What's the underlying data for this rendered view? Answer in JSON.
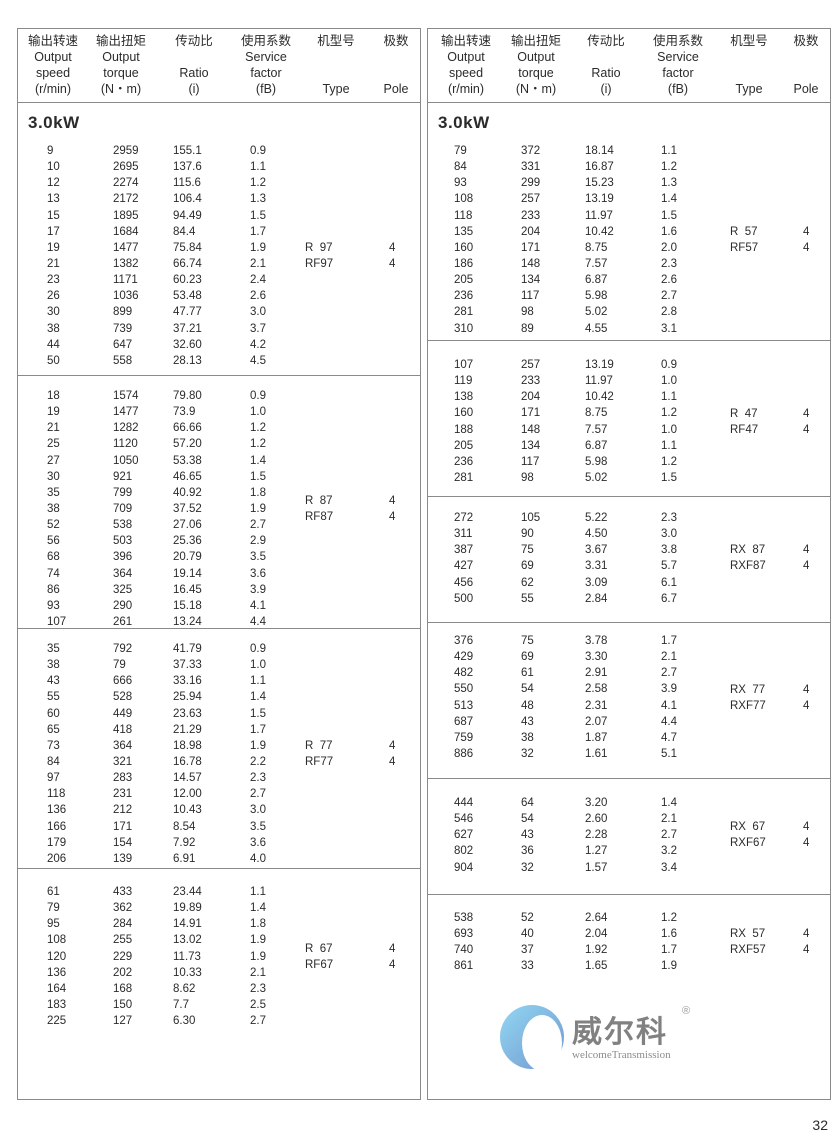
{
  "header": {
    "columns": [
      {
        "zh": "输出转速",
        "en1": "Output",
        "en2": "speed",
        "unit": "(r/min)"
      },
      {
        "zh": "输出扭矩",
        "en1": "Output",
        "en2": "torque",
        "unit": "(N・m)"
      },
      {
        "zh": "传动比",
        "en1": "",
        "en2": "Ratio",
        "unit": "(i)"
      },
      {
        "zh": "使用系数",
        "en1": "Service",
        "en2": "factor",
        "unit": "(fB)"
      },
      {
        "zh": "机型号",
        "en1": "",
        "en2": "",
        "unit": "Type"
      },
      {
        "zh": "极数",
        "en1": "",
        "en2": "",
        "unit": "Pole"
      }
    ]
  },
  "left": {
    "sections": [
      {
        "title": "3.0kW",
        "types": [
          "R  97",
          "RF97"
        ],
        "poles": [
          "4",
          "4"
        ],
        "rows": [
          [
            "9",
            "2959",
            "155.1",
            "0.9"
          ],
          [
            "10",
            "2695",
            "137.6",
            "1.1"
          ],
          [
            "12",
            "2274",
            "115.6",
            "1.2"
          ],
          [
            "13",
            "2172",
            "106.4",
            "1.3"
          ],
          [
            "15",
            "1895",
            "94.49",
            "1.5"
          ],
          [
            "17",
            "1684",
            "84.4",
            "1.7"
          ],
          [
            "19",
            "1477",
            "75.84",
            "1.9"
          ],
          [
            "21",
            "1382",
            "66.74",
            "2.1"
          ],
          [
            "23",
            "1171",
            "60.23",
            "2.4"
          ],
          [
            "26",
            "1036",
            "53.48",
            "2.6"
          ],
          [
            "30",
            "899",
            "47.77",
            "3.0"
          ],
          [
            "38",
            "739",
            "37.21",
            "3.7"
          ],
          [
            "44",
            "647",
            "32.60",
            "4.2"
          ],
          [
            "50",
            "558",
            "28.13",
            "4.5"
          ]
        ]
      },
      {
        "title": "",
        "types": [
          "R  87",
          "RF87"
        ],
        "poles": [
          "4",
          "4"
        ],
        "rows": [
          [
            "18",
            "1574",
            "79.80",
            "0.9"
          ],
          [
            "19",
            "1477",
            "73.9",
            "1.0"
          ],
          [
            "21",
            "1282",
            "66.66",
            "1.2"
          ],
          [
            "25",
            "1120",
            "57.20",
            "1.2"
          ],
          [
            "27",
            "1050",
            "53.38",
            "1.4"
          ],
          [
            "30",
            "921",
            "46.65",
            "1.5"
          ],
          [
            "35",
            "799",
            "40.92",
            "1.8"
          ],
          [
            "38",
            "709",
            "37.52",
            "1.9"
          ],
          [
            "52",
            "538",
            "27.06",
            "2.7"
          ],
          [
            "56",
            "503",
            "25.36",
            "2.9"
          ],
          [
            "68",
            "396",
            "20.79",
            "3.5"
          ],
          [
            "74",
            "364",
            "19.14",
            "3.6"
          ],
          [
            "86",
            "325",
            "16.45",
            "3.9"
          ],
          [
            "93",
            "290",
            "15.18",
            "4.1"
          ],
          [
            "107",
            "261",
            "13.24",
            "4.4"
          ]
        ]
      },
      {
        "title": "",
        "types": [
          "R  77",
          "RF77"
        ],
        "poles": [
          "4",
          "4"
        ],
        "rows": [
          [
            "35",
            "792",
            "41.79",
            "0.9"
          ],
          [
            "38",
            "79",
            "37.33",
            "1.0"
          ],
          [
            "43",
            "666",
            "33.16",
            "1.1"
          ],
          [
            "55",
            "528",
            "25.94",
            "1.4"
          ],
          [
            "60",
            "449",
            "23.63",
            "1.5"
          ],
          [
            "65",
            "418",
            "21.29",
            "1.7"
          ],
          [
            "73",
            "364",
            "18.98",
            "1.9"
          ],
          [
            "84",
            "321",
            "16.78",
            "2.2"
          ],
          [
            "97",
            "283",
            "14.57",
            "2.3"
          ],
          [
            "118",
            "231",
            "12.00",
            "2.7"
          ],
          [
            "136",
            "212",
            "10.43",
            "3.0"
          ],
          [
            "166",
            "171",
            "8.54",
            "3.5"
          ],
          [
            "179",
            "154",
            "7.92",
            "3.6"
          ],
          [
            "206",
            "139",
            "6.91",
            "4.0"
          ]
        ]
      },
      {
        "title": "",
        "types": [
          "R  67",
          "RF67"
        ],
        "poles": [
          "4",
          "4"
        ],
        "rows": [
          [
            "61",
            "433",
            "23.44",
            "1.1"
          ],
          [
            "79",
            "362",
            "19.89",
            "1.4"
          ],
          [
            "95",
            "284",
            "14.91",
            "1.8"
          ],
          [
            "108",
            "255",
            "13.02",
            "1.9"
          ],
          [
            "120",
            "229",
            "11.73",
            "1.9"
          ],
          [
            "136",
            "202",
            "10.33",
            "2.1"
          ],
          [
            "164",
            "168",
            "8.62",
            "2.3"
          ],
          [
            "183",
            "150",
            "7.7",
            "2.5"
          ],
          [
            "225",
            "127",
            "6.30",
            "2.7"
          ]
        ]
      }
    ]
  },
  "right": {
    "sections": [
      {
        "title": "3.0kW",
        "types": [
          "R  57",
          "RF57"
        ],
        "poles": [
          "4",
          "4"
        ],
        "rows": [
          [
            "79",
            "372",
            "18.14",
            "1.1"
          ],
          [
            "84",
            "331",
            "16.87",
            "1.2"
          ],
          [
            "93",
            "299",
            "15.23",
            "1.3"
          ],
          [
            "108",
            "257",
            "13.19",
            "1.4"
          ],
          [
            "118",
            "233",
            "11.97",
            "1.5"
          ],
          [
            "135",
            "204",
            "10.42",
            "1.6"
          ],
          [
            "160",
            "171",
            "8.75",
            "2.0"
          ],
          [
            "186",
            "148",
            "7.57",
            "2.3"
          ],
          [
            "205",
            "134",
            "6.87",
            "2.6"
          ],
          [
            "236",
            "117",
            "5.98",
            "2.7"
          ],
          [
            "281",
            "98",
            "5.02",
            "2.8"
          ],
          [
            "310",
            "89",
            "4.55",
            "3.1"
          ]
        ]
      },
      {
        "title": "",
        "types": [
          "R  47",
          "RF47"
        ],
        "poles": [
          "4",
          "4"
        ],
        "rows": [
          [
            "107",
            "257",
            "13.19",
            "0.9"
          ],
          [
            "119",
            "233",
            "11.97",
            "1.0"
          ],
          [
            "138",
            "204",
            "10.42",
            "1.1"
          ],
          [
            "160",
            "171",
            "8.75",
            "1.2"
          ],
          [
            "188",
            "148",
            "7.57",
            "1.0"
          ],
          [
            "205",
            "134",
            "6.87",
            "1.1"
          ],
          [
            "236",
            "117",
            "5.98",
            "1.2"
          ],
          [
            "281",
            "98",
            "5.02",
            "1.5"
          ]
        ]
      },
      {
        "title": "",
        "types": [
          "RX  87",
          "RXF87"
        ],
        "poles": [
          "4",
          "4"
        ],
        "rows": [
          [
            "272",
            "105",
            "5.22",
            "2.3"
          ],
          [
            "311",
            "90",
            "4.50",
            "3.0"
          ],
          [
            "387",
            "75",
            "3.67",
            "3.8"
          ],
          [
            "427",
            "69",
            "3.31",
            "5.7"
          ],
          [
            "456",
            "62",
            "3.09",
            "6.1"
          ],
          [
            "500",
            "55",
            "2.84",
            "6.7"
          ]
        ]
      },
      {
        "title": "",
        "types": [
          "RX  77",
          "RXF77"
        ],
        "poles": [
          "4",
          "4"
        ],
        "rows": [
          [
            "376",
            "75",
            "3.78",
            "1.7"
          ],
          [
            "429",
            "69",
            "3.30",
            "2.1"
          ],
          [
            "482",
            "61",
            "2.91",
            "2.7"
          ],
          [
            "550",
            "54",
            "2.58",
            "3.9"
          ],
          [
            "513",
            "48",
            "2.31",
            "4.1"
          ],
          [
            "687",
            "43",
            "2.07",
            "4.4"
          ],
          [
            "759",
            "38",
            "1.87",
            "4.7"
          ],
          [
            "886",
            "32",
            "1.61",
            "5.1"
          ]
        ]
      },
      {
        "title": "",
        "types": [
          "RX  67",
          "RXF67"
        ],
        "poles": [
          "4",
          "4"
        ],
        "rows": [
          [
            "444",
            "64",
            "3.20",
            "1.4"
          ],
          [
            "546",
            "54",
            "2.60",
            "2.1"
          ],
          [
            "627",
            "43",
            "2.28",
            "2.7"
          ],
          [
            "802",
            "36",
            "1.27",
            "3.2"
          ],
          [
            "904",
            "32",
            "1.57",
            "3.4"
          ]
        ]
      },
      {
        "title": "",
        "types": [
          "RX  57",
          "RXF57"
        ],
        "poles": [
          "4",
          "4"
        ],
        "rows": [
          [
            "538",
            "52",
            "2.64",
            "1.2"
          ],
          [
            "693",
            "40",
            "2.04",
            "1.6"
          ],
          [
            "740",
            "37",
            "1.92",
            "1.7"
          ],
          [
            "861",
            "33",
            "1.65",
            "1.9"
          ]
        ]
      }
    ]
  },
  "watermark": {
    "zh": "威尔科",
    "en": "welcomeTransmission",
    "reg": "®",
    "colors": [
      "#7fd0f0",
      "#5a86c8"
    ]
  },
  "page_number": "32"
}
